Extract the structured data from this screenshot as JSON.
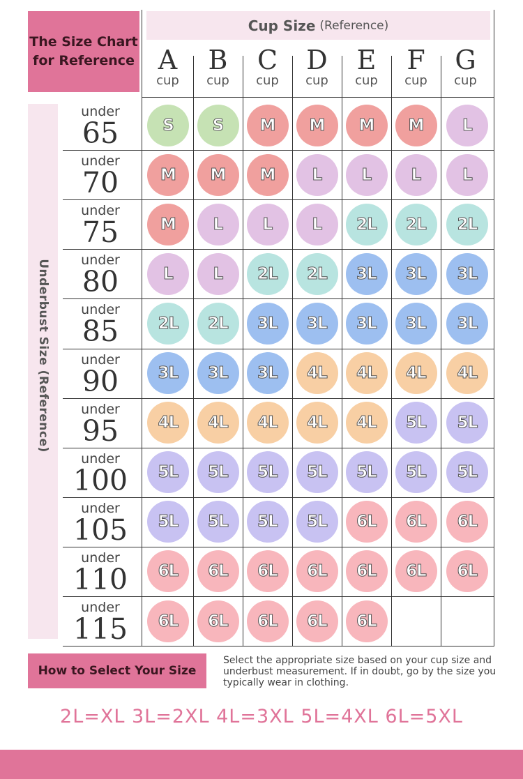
{
  "chart_title": "The Size Chart\nfor Reference",
  "cup_header": {
    "main": "Cup Size",
    "sub": "(Reference)"
  },
  "row_header": "Underbust Size (Reference)",
  "cups": [
    "A",
    "B",
    "C",
    "D",
    "E",
    "F",
    "G"
  ],
  "cup_word": "cup",
  "under_word": "under",
  "rows": [
    {
      "under": "65",
      "sizes": [
        "S",
        "S",
        "M",
        "M",
        "M",
        "M",
        "L"
      ]
    },
    {
      "under": "70",
      "sizes": [
        "M",
        "M",
        "M",
        "L",
        "L",
        "L",
        "L"
      ]
    },
    {
      "under": "75",
      "sizes": [
        "M",
        "L",
        "L",
        "L",
        "2L",
        "2L",
        "2L"
      ]
    },
    {
      "under": "80",
      "sizes": [
        "L",
        "L",
        "2L",
        "2L",
        "3L",
        "3L",
        "3L"
      ]
    },
    {
      "under": "85",
      "sizes": [
        "2L",
        "2L",
        "3L",
        "3L",
        "3L",
        "3L",
        "3L"
      ]
    },
    {
      "under": "90",
      "sizes": [
        "3L",
        "3L",
        "3L",
        "4L",
        "4L",
        "4L",
        "4L"
      ]
    },
    {
      "under": "95",
      "sizes": [
        "4L",
        "4L",
        "4L",
        "4L",
        "4L",
        "5L",
        "5L"
      ]
    },
    {
      "under": "100",
      "sizes": [
        "5L",
        "5L",
        "5L",
        "5L",
        "5L",
        "5L",
        "5L"
      ]
    },
    {
      "under": "105",
      "sizes": [
        "5L",
        "5L",
        "5L",
        "5L",
        "6L",
        "6L",
        "6L"
      ]
    },
    {
      "under": "110",
      "sizes": [
        "6L",
        "6L",
        "6L",
        "6L",
        "6L",
        "6L",
        "6L"
      ]
    },
    {
      "under": "115",
      "sizes": [
        "6L",
        "6L",
        "6L",
        "6L",
        "6L",
        "",
        ""
      ]
    }
  ],
  "size_colors": {
    "S": "#c6e2b4",
    "M": "#f0a09e",
    "L": "#e2c2e4",
    "2L": "#b8e4e0",
    "3L": "#9dbff0",
    "4L": "#f8cfa4",
    "5L": "#c8c2f2",
    "6L": "#f8b6bc"
  },
  "how_title": "How to Select Your Size",
  "how_text": "Select the appropriate size based on your cup size and underbust measurement. If in doubt, go by the size you typically wear in clothing.",
  "legend": "2L=XL 3L=2XL 4L=3XL 5L=4XL 6L=5XL",
  "colors": {
    "accent": "#e07499",
    "light_pink": "#f7e6ee"
  }
}
